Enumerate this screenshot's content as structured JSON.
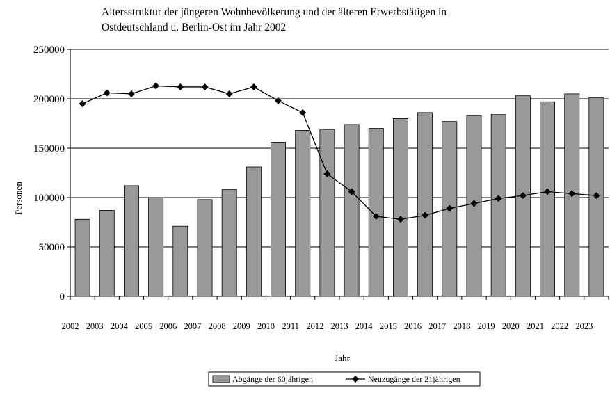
{
  "chart_data": {
    "type": "bar",
    "title_lines": [
      "Altersstruktur der jüngeren Wohnbevölkerung und der älteren Erwerbstätigen in",
      "Ostdeutschland u. Berlin-Ost im Jahr 2002"
    ],
    "xlabel": "Jahr",
    "ylabel": "Personen",
    "ylim": [
      0,
      250000
    ],
    "yticks": [
      0,
      50000,
      100000,
      150000,
      200000,
      250000
    ],
    "x_tick_labels": [
      "2002",
      "2003",
      "2004",
      "2005",
      "2006",
      "2007",
      "2008",
      "2009",
      "2010",
      "2011",
      "2012",
      "2013",
      "2014",
      "2015",
      "2016",
      "2017",
      "2018",
      "2019",
      "2020",
      "2021",
      "2022",
      "2023"
    ],
    "grid": "horizontal",
    "legend_position": "bottom",
    "series": [
      {
        "name": "Abgänge der 60jährigen",
        "type": "bar",
        "color": "#999999",
        "values": [
          78000,
          87000,
          112000,
          100000,
          71000,
          98000,
          108000,
          131000,
          156000,
          168000,
          169000,
          174000,
          170000,
          180000,
          186000,
          177000,
          183000,
          184000,
          203000,
          197000,
          205000,
          201000
        ]
      },
      {
        "name": "Neuzugänge der 21jährigen",
        "type": "line",
        "marker": "diamond",
        "color": "#000000",
        "values": [
          195000,
          206000,
          205000,
          213000,
          212000,
          212000,
          205000,
          212000,
          198000,
          186000,
          124000,
          106000,
          81000,
          78000,
          82000,
          89000,
          94000,
          99000,
          102000,
          106000,
          104000,
          102000
        ]
      }
    ]
  }
}
